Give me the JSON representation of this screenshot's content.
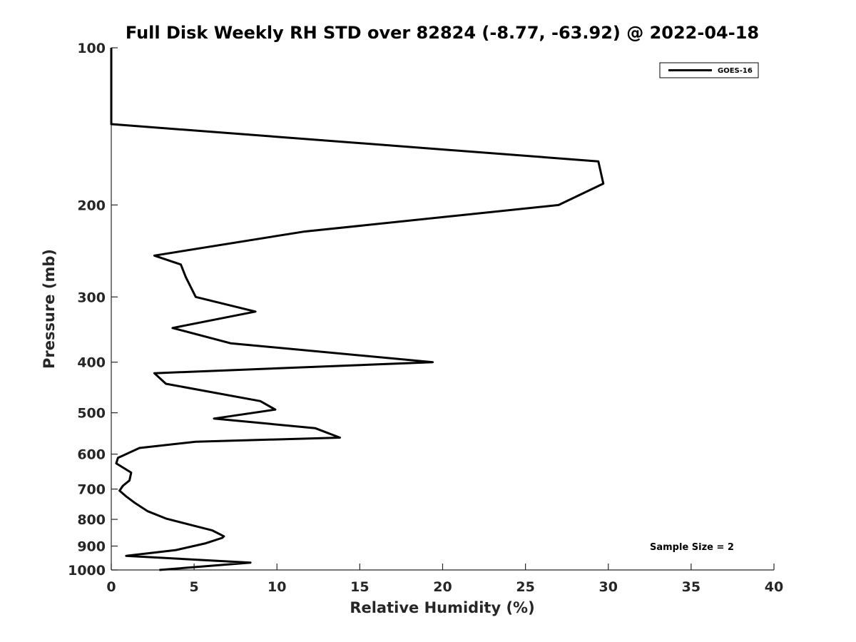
{
  "chart_data": {
    "type": "line",
    "title": "Full Disk Weekly RH STD over 82824 (-8.77, -63.92) @ 2022-04-18",
    "xlabel": "Relative Humidity (%)",
    "ylabel": "Pressure (mb)",
    "xlim": [
      0,
      40
    ],
    "ylim": [
      100,
      1000
    ],
    "yscale": "log",
    "y_reversed": true,
    "grid": false,
    "legend_position": "top-right",
    "x_ticks": [
      "0",
      "5",
      "10",
      "15",
      "20",
      "25",
      "30",
      "35",
      "40"
    ],
    "y_ticks": [
      "100",
      "200",
      "300",
      "400",
      "500",
      "600",
      "700",
      "800",
      "900",
      "1000"
    ],
    "annotation": "Sample Size = 2",
    "series": [
      {
        "name": "GOES-16",
        "color": "#000000",
        "x": [
          0,
          0,
          29.4,
          29.7,
          27.0,
          11.6,
          2.6,
          4.2,
          4.5,
          5.1,
          8.7,
          3.7,
          7.2,
          19.4,
          2.6,
          3.3,
          9.0,
          9.9,
          6.2,
          12.3,
          13.8,
          5.1,
          1.7,
          0.4,
          0.3,
          1.2,
          1.1,
          0.7,
          0.5,
          0.9,
          1.4,
          2.2,
          3.3,
          5.0,
          6.1,
          6.8,
          6.7,
          5.7,
          3.9,
          0.9,
          8.4,
          2.9
        ],
        "y": [
          100,
          140,
          165,
          182,
          200,
          225,
          250,
          260,
          275,
          300,
          320,
          344,
          368,
          400,
          420,
          440,
          475,
          493,
          513,
          535,
          558,
          568,
          584,
          610,
          625,
          651,
          674,
          690,
          705,
          723,
          743,
          772,
          797,
          823,
          840,
          862,
          868,
          889,
          916,
          940,
          968,
          1000
        ]
      }
    ]
  }
}
